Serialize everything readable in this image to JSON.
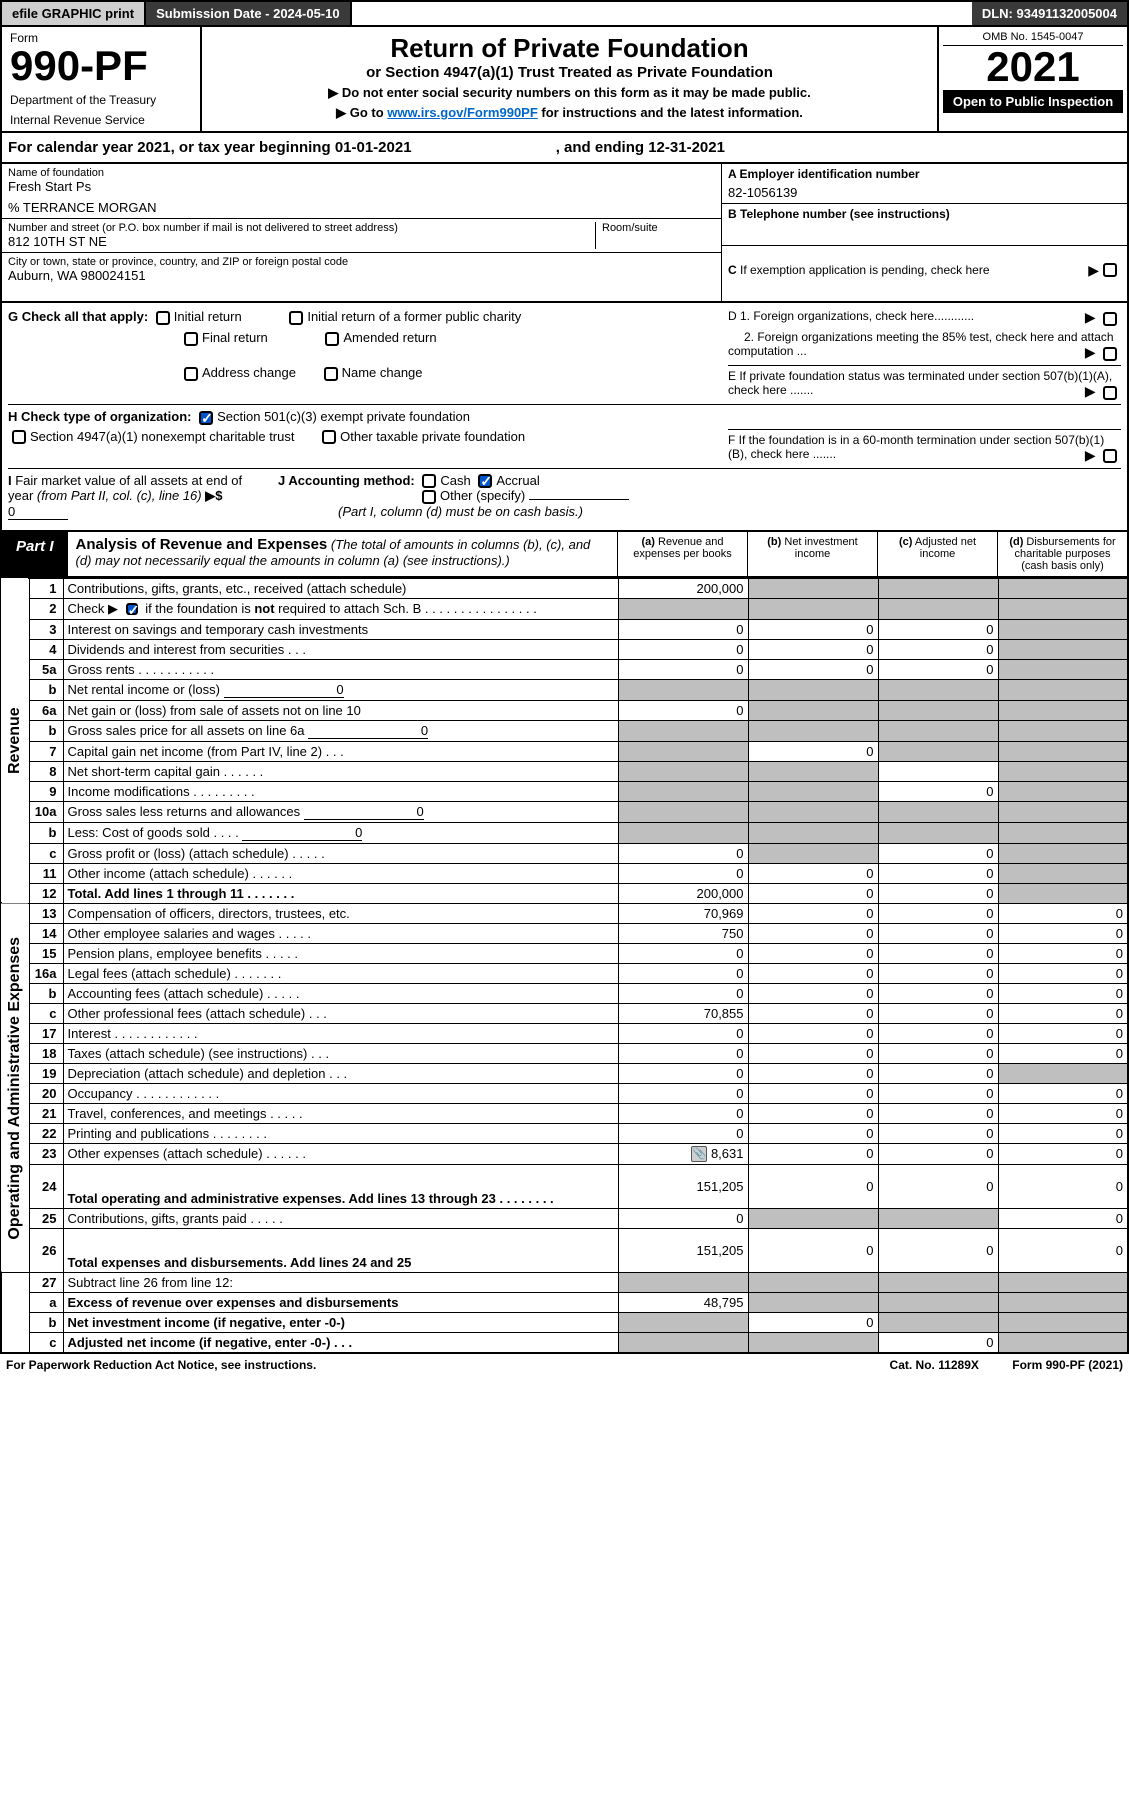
{
  "header": {
    "efile": "efile GRAPHIC print",
    "submission": "Submission Date - 2024-05-10",
    "dln": "DLN: 93491132005004"
  },
  "top": {
    "form": "Form",
    "formno": "990-PF",
    "dept": "Department of the Treasury",
    "irs": "Internal Revenue Service",
    "title": "Return of Private Foundation",
    "subtitle": "or Section 4947(a)(1) Trust Treated as Private Foundation",
    "note1": "▶ Do not enter social security numbers on this form as it may be made public.",
    "note2_pre": "▶ Go to ",
    "note2_link": "www.irs.gov/Form990PF",
    "note2_post": " for instructions and the latest information.",
    "omb": "OMB No. 1545-0047",
    "year": "2021",
    "pub": "Open to Public Inspection"
  },
  "cal": {
    "pre": "For calendar year 2021, or tax year beginning ",
    "begin": "01-01-2021",
    "mid": " , and ending ",
    "end": "12-31-2021"
  },
  "info": {
    "name_lbl": "Name of foundation",
    "name": "Fresh Start Ps",
    "care": "% TERRANCE MORGAN",
    "addr_lbl": "Number and street (or P.O. box number if mail is not delivered to street address)",
    "addr": "812 10TH ST NE",
    "room_lbl": "Room/suite",
    "city_lbl": "City or town, state or province, country, and ZIP or foreign postal code",
    "city": "Auburn, WA  980024151",
    "a_lbl": "A Employer identification number",
    "a_val": "82-1056139",
    "b_lbl": "B Telephone number (see instructions)",
    "c_lbl": "C If exemption application is pending, check here",
    "d1": "D 1. Foreign organizations, check here............",
    "d2": "2. Foreign organizations meeting the 85% test, check here and attach computation ...",
    "e": "E  If private foundation status was terminated under section 507(b)(1)(A), check here .......",
    "f": "F  If the foundation is in a 60-month termination under section 507(b)(1)(B), check here .......",
    "g_lbl": "G Check all that apply:",
    "g_initial": "Initial return",
    "g_initial_former": "Initial return of a former public charity",
    "g_final": "Final return",
    "g_amended": "Amended return",
    "g_address": "Address change",
    "g_name": "Name change",
    "h_lbl": "H Check type of organization:",
    "h_501": "Section 501(c)(3) exempt private foundation",
    "h_4947": "Section 4947(a)(1) nonexempt charitable trust",
    "h_other": "Other taxable private foundation",
    "i_lbl": "I Fair market value of all assets at end of year (from Part II, col. (c), line 16) ▶$ ",
    "i_val": "0",
    "j_lbl": "J Accounting method:",
    "j_cash": "Cash",
    "j_accrual": "Accrual",
    "j_other": "Other (specify)",
    "j_note": "(Part I, column (d) must be on cash basis.)"
  },
  "part": {
    "tag": "Part I",
    "title": "Analysis of Revenue and Expenses",
    "note": " (The total of amounts in columns (b), (c), and (d) may not necessarily equal the amounts in column (a) (see instructions).)",
    "col_a": "(a) Revenue and expenses per books",
    "col_b": "(b) Net investment income",
    "col_c": "(c) Adjusted net income",
    "col_d": "(d) Disbursements for charitable purposes (cash basis only)"
  },
  "side": {
    "rev": "Revenue",
    "exp": "Operating and Administrative Expenses"
  },
  "rows": [
    {
      "n": "1",
      "d": "Contributions, gifts, grants, etc., received (attach schedule)",
      "a": "200,000",
      "b": "",
      "c": "",
      "ds": "",
      "sb": true,
      "sc": true,
      "sd": true
    },
    {
      "n": "2",
      "d": "Check ▶ ☑ if the foundation is not required to attach Sch. B    .  .  .  .  .  .  .  .  .  .  .  .  .  .  .  .",
      "a": "",
      "b": "",
      "c": "",
      "ds": "",
      "sa": true,
      "sb": true,
      "sc": true,
      "sd": true,
      "bold_not": true
    },
    {
      "n": "3",
      "d": "Interest on savings and temporary cash investments",
      "a": "0",
      "b": "0",
      "c": "0",
      "ds": "",
      "sd": true
    },
    {
      "n": "4",
      "d": "Dividends and interest from securities   .   .   .",
      "a": "0",
      "b": "0",
      "c": "0",
      "ds": "",
      "sd": true
    },
    {
      "n": "5a",
      "d": "Gross rents   .   .   .   .   .   .   .   .   .   .   .",
      "a": "0",
      "b": "0",
      "c": "0",
      "ds": "",
      "sd": true
    },
    {
      "n": "b",
      "d": "Net rental income or (loss)",
      "inline": "0",
      "a": "",
      "b": "",
      "c": "",
      "ds": "",
      "sa": true,
      "sb": true,
      "sc": true,
      "sd": true
    },
    {
      "n": "6a",
      "d": "Net gain or (loss) from sale of assets not on line 10",
      "a": "0",
      "b": "",
      "c": "",
      "ds": "",
      "sb": true,
      "sc": true,
      "sd": true
    },
    {
      "n": "b",
      "d": "Gross sales price for all assets on line 6a",
      "inline": "0",
      "a": "",
      "b": "",
      "c": "",
      "ds": "",
      "sa": true,
      "sb": true,
      "sc": true,
      "sd": true
    },
    {
      "n": "7",
      "d": "Capital gain net income (from Part IV, line 2)   .   .   .",
      "a": "",
      "b": "0",
      "c": "",
      "ds": "",
      "sa": true,
      "sc": true,
      "sd": true
    },
    {
      "n": "8",
      "d": "Net short-term capital gain   .   .   .   .   .   .",
      "a": "",
      "b": "",
      "c": "",
      "ds": "",
      "sa": true,
      "sb": true,
      "sd": true
    },
    {
      "n": "9",
      "d": "Income modifications   .   .   .   .   .   .   .   .   .",
      "a": "",
      "b": "",
      "c": "0",
      "ds": "",
      "sa": true,
      "sb": true,
      "sd": true
    },
    {
      "n": "10a",
      "d": "Gross sales less returns and allowances",
      "inline": "0",
      "a": "",
      "b": "",
      "c": "",
      "ds": "",
      "sa": true,
      "sb": true,
      "sc": true,
      "sd": true
    },
    {
      "n": "b",
      "d": "Less: Cost of goods sold    .   .   .   .",
      "inline": "0",
      "a": "",
      "b": "",
      "c": "",
      "ds": "",
      "sa": true,
      "sb": true,
      "sc": true,
      "sd": true
    },
    {
      "n": "c",
      "d": "Gross profit or (loss) (attach schedule)    .   .   .   .   .",
      "a": "0",
      "b": "",
      "c": "0",
      "ds": "",
      "sb": true,
      "sd": true
    },
    {
      "n": "11",
      "d": "Other income (attach schedule)   .   .   .   .   .   .",
      "a": "0",
      "b": "0",
      "c": "0",
      "ds": "",
      "sd": true
    },
    {
      "n": "12",
      "d": "Total. Add lines 1 through 11   .   .   .   .   .   .   .",
      "a": "200,000",
      "b": "0",
      "c": "0",
      "ds": "",
      "sd": true,
      "bold": true
    }
  ],
  "exp_rows": [
    {
      "n": "13",
      "d": "Compensation of officers, directors, trustees, etc.",
      "a": "70,969",
      "b": "0",
      "c": "0",
      "ds": "0"
    },
    {
      "n": "14",
      "d": "Other employee salaries and wages   .   .   .   .   .",
      "a": "750",
      "b": "0",
      "c": "0",
      "ds": "0"
    },
    {
      "n": "15",
      "d": "Pension plans, employee benefits   .   .   .   .   .",
      "a": "0",
      "b": "0",
      "c": "0",
      "ds": "0"
    },
    {
      "n": "16a",
      "d": "Legal fees (attach schedule)   .   .   .   .   .   .   .",
      "a": "0",
      "b": "0",
      "c": "0",
      "ds": "0"
    },
    {
      "n": "b",
      "d": "Accounting fees (attach schedule)   .   .   .   .   .",
      "a": "0",
      "b": "0",
      "c": "0",
      "ds": "0"
    },
    {
      "n": "c",
      "d": "Other professional fees (attach schedule)    .   .   .",
      "a": "70,855",
      "b": "0",
      "c": "0",
      "ds": "0"
    },
    {
      "n": "17",
      "d": "Interest   .   .   .   .   .   .   .   .   .   .   .   .",
      "a": "0",
      "b": "0",
      "c": "0",
      "ds": "0"
    },
    {
      "n": "18",
      "d": "Taxes (attach schedule) (see instructions)    .   .   .",
      "a": "0",
      "b": "0",
      "c": "0",
      "ds": "0"
    },
    {
      "n": "19",
      "d": "Depreciation (attach schedule) and depletion   .   .   .",
      "a": "0",
      "b": "0",
      "c": "0",
      "ds": "",
      "sd": true
    },
    {
      "n": "20",
      "d": "Occupancy   .   .   .   .   .   .   .   .   .   .   .   .",
      "a": "0",
      "b": "0",
      "c": "0",
      "ds": "0"
    },
    {
      "n": "21",
      "d": "Travel, conferences, and meetings   .   .   .   .   .",
      "a": "0",
      "b": "0",
      "c": "0",
      "ds": "0"
    },
    {
      "n": "22",
      "d": "Printing and publications   .   .   .   .   .   .   .   .",
      "a": "0",
      "b": "0",
      "c": "0",
      "ds": "0"
    },
    {
      "n": "23",
      "d": "Other expenses (attach schedule)   .   .   .   .   .   .",
      "a": "8,631",
      "b": "0",
      "c": "0",
      "ds": "0",
      "icon": true
    },
    {
      "n": "24",
      "d": "Total operating and administrative expenses. Add lines 13 through 23   .   .   .   .   .   .   .   .",
      "a": "151,205",
      "b": "0",
      "c": "0",
      "ds": "0",
      "bold": true,
      "tall": true
    },
    {
      "n": "25",
      "d": "Contributions, gifts, grants paid    .   .   .   .   .",
      "a": "0",
      "b": "",
      "c": "",
      "ds": "0",
      "sb": true,
      "sc": true
    },
    {
      "n": "26",
      "d": "Total expenses and disbursements. Add lines 24 and 25",
      "a": "151,205",
      "b": "0",
      "c": "0",
      "ds": "0",
      "bold": true,
      "tall": true
    }
  ],
  "bottom_rows": [
    {
      "n": "27",
      "d": "Subtract line 26 from line 12:",
      "a": "",
      "b": "",
      "c": "",
      "ds": "",
      "sa": true,
      "sb": true,
      "sc": true,
      "sd": true
    },
    {
      "n": "a",
      "d": "Excess of revenue over expenses and disbursements",
      "a": "48,795",
      "b": "",
      "c": "",
      "ds": "",
      "sb": true,
      "sc": true,
      "sd": true,
      "bold": true
    },
    {
      "n": "b",
      "d": "Net investment income (if negative, enter -0-)",
      "a": "",
      "b": "0",
      "c": "",
      "ds": "",
      "sa": true,
      "sc": true,
      "sd": true,
      "bold": true
    },
    {
      "n": "c",
      "d": "Adjusted net income (if negative, enter -0-)   .   .   .",
      "a": "",
      "b": "",
      "c": "0",
      "ds": "",
      "sa": true,
      "sb": true,
      "sd": true,
      "bold": true
    }
  ],
  "footer": {
    "left": "For Paperwork Reduction Act Notice, see instructions.",
    "mid": "Cat. No. 11289X",
    "right": "Form 990-PF (2021)"
  }
}
